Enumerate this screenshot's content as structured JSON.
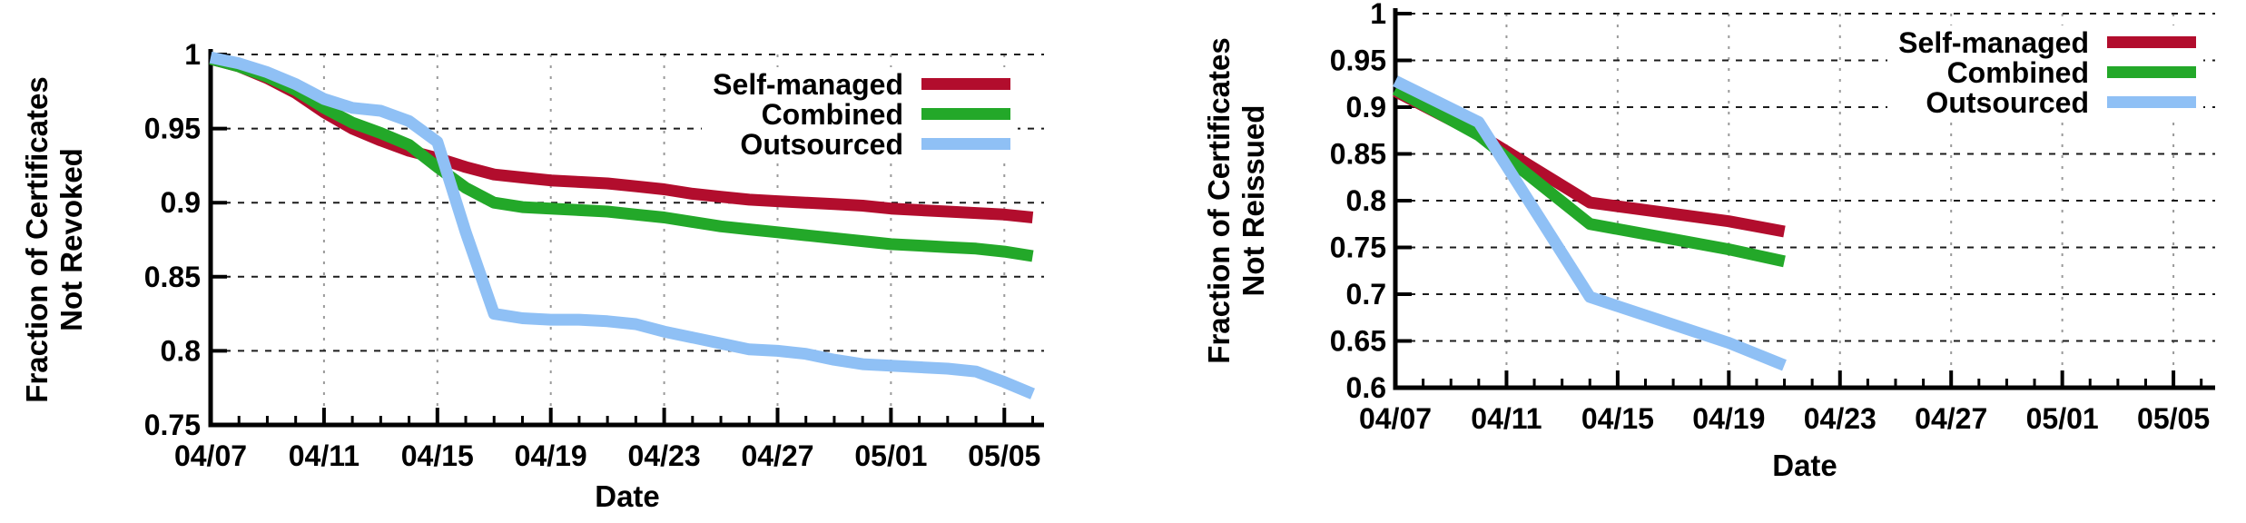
{
  "styles": {
    "background": "#ffffff",
    "text": "#000000",
    "axis": "#000000",
    "h_grid": "#1c1c1c",
    "v_grid": "#9a9a9a",
    "series_colors": {
      "self_managed": "#b20d2d",
      "combined": "#23a829",
      "outsourced": "#8fc0f5"
    }
  },
  "chart_data": [
    {
      "type": "line",
      "title": "",
      "xlabel": "Date",
      "ylabel": "Fraction of Certificates Not Revoked",
      "ylabel_lines": [
        "Fraction of Certificates",
        "Not Revoked"
      ],
      "ylim": [
        0.75,
        1.0
      ],
      "y_tick_values": [
        0.75,
        0.8,
        0.85,
        0.9,
        0.95,
        1.0
      ],
      "y_tick_labels": [
        "0.75",
        "0.8",
        "0.85",
        "0.9",
        "0.95",
        "1"
      ],
      "xlim_days": [
        0,
        29.4
      ],
      "x_tick_days": [
        0,
        4,
        8,
        12,
        16,
        20,
        24,
        28
      ],
      "x_tick_labels": [
        "04/07",
        "04/11",
        "04/15",
        "04/19",
        "04/23",
        "04/27",
        "05/01",
        "05/05"
      ],
      "x_minor_tick_step_days": 1,
      "grid": true,
      "legend_position": "top-right-inside",
      "dates": [
        "04/07",
        "04/08",
        "04/09",
        "04/10",
        "04/11",
        "04/12",
        "04/13",
        "04/14",
        "04/15",
        "04/16",
        "04/17",
        "04/18",
        "04/19",
        "04/20",
        "04/21",
        "04/22",
        "04/23",
        "04/24",
        "04/25",
        "04/26",
        "04/27",
        "04/28",
        "04/29",
        "04/30",
        "05/01",
        "05/02",
        "05/03",
        "05/04",
        "05/05",
        "05/06"
      ],
      "series": [
        {
          "name": "Self-managed",
          "color": "#b20d2d",
          "points": [
            [
              0,
              0.997
            ],
            [
              1,
              0.992
            ],
            [
              2,
              0.984
            ],
            [
              3,
              0.974
            ],
            [
              4,
              0.961
            ],
            [
              5,
              0.95
            ],
            [
              6,
              0.942
            ],
            [
              7,
              0.935
            ],
            [
              8,
              0.93
            ],
            [
              9,
              0.924
            ],
            [
              10,
              0.919
            ],
            [
              11,
              0.917
            ],
            [
              12,
              0.915
            ],
            [
              13,
              0.914
            ],
            [
              14,
              0.913
            ],
            [
              15,
              0.911
            ],
            [
              16,
              0.909
            ],
            [
              17,
              0.906
            ],
            [
              18,
              0.904
            ],
            [
              19,
              0.902
            ],
            [
              20,
              0.901
            ],
            [
              21,
              0.9
            ],
            [
              22,
              0.899
            ],
            [
              23,
              0.898
            ],
            [
              24,
              0.896
            ],
            [
              25,
              0.895
            ],
            [
              26,
              0.894
            ],
            [
              27,
              0.893
            ],
            [
              28,
              0.892
            ],
            [
              29,
              0.89
            ]
          ]
        },
        {
          "name": "Combined",
          "color": "#23a829",
          "points": [
            [
              0,
              0.997
            ],
            [
              1,
              0.992
            ],
            [
              2,
              0.985
            ],
            [
              3,
              0.976
            ],
            [
              4,
              0.964
            ],
            [
              5,
              0.954
            ],
            [
              6,
              0.947
            ],
            [
              7,
              0.939
            ],
            [
              8,
              0.924
            ],
            [
              9,
              0.91
            ],
            [
              10,
              0.9
            ],
            [
              11,
              0.897
            ],
            [
              12,
              0.896
            ],
            [
              13,
              0.895
            ],
            [
              14,
              0.894
            ],
            [
              15,
              0.892
            ],
            [
              16,
              0.89
            ],
            [
              17,
              0.887
            ],
            [
              18,
              0.884
            ],
            [
              19,
              0.882
            ],
            [
              20,
              0.88
            ],
            [
              21,
              0.878
            ],
            [
              22,
              0.876
            ],
            [
              23,
              0.874
            ],
            [
              24,
              0.872
            ],
            [
              25,
              0.871
            ],
            [
              26,
              0.87
            ],
            [
              27,
              0.869
            ],
            [
              28,
              0.867
            ],
            [
              29,
              0.864
            ]
          ]
        },
        {
          "name": "Outsourced",
          "color": "#8fc0f5",
          "points": [
            [
              0,
              0.998
            ],
            [
              1,
              0.994
            ],
            [
              2,
              0.988
            ],
            [
              3,
              0.98
            ],
            [
              4,
              0.97
            ],
            [
              5,
              0.964
            ],
            [
              6,
              0.962
            ],
            [
              7,
              0.955
            ],
            [
              8,
              0.941
            ],
            [
              9,
              0.88
            ],
            [
              10,
              0.825
            ],
            [
              11,
              0.822
            ],
            [
              12,
              0.821
            ],
            [
              13,
              0.821
            ],
            [
              14,
              0.82
            ],
            [
              15,
              0.818
            ],
            [
              16,
              0.813
            ],
            [
              17,
              0.809
            ],
            [
              18,
              0.805
            ],
            [
              19,
              0.801
            ],
            [
              20,
              0.8
            ],
            [
              21,
              0.798
            ],
            [
              22,
              0.794
            ],
            [
              23,
              0.791
            ],
            [
              24,
              0.79
            ],
            [
              25,
              0.789
            ],
            [
              26,
              0.788
            ],
            [
              27,
              0.786
            ],
            [
              28,
              0.779
            ],
            [
              29,
              0.771
            ]
          ]
        }
      ]
    },
    {
      "type": "line",
      "title": "",
      "xlabel": "Date",
      "ylabel": "Fraction of Certificates Not Reissued",
      "ylabel_lines": [
        "Fraction of Certificates",
        "Not Reissued"
      ],
      "ylim": [
        0.6,
        1.0
      ],
      "y_tick_values": [
        0.6,
        0.65,
        0.7,
        0.75,
        0.8,
        0.85,
        0.9,
        0.95,
        1.0
      ],
      "y_tick_labels": [
        "0.6",
        "0.65",
        "0.7",
        "0.75",
        "0.8",
        "0.85",
        "0.9",
        "0.95",
        "1"
      ],
      "xlim_days": [
        0,
        29.5
      ],
      "x_tick_days": [
        0,
        4,
        8,
        12,
        16,
        20,
        24,
        28
      ],
      "x_tick_labels": [
        "04/07",
        "04/11",
        "04/15",
        "04/19",
        "04/23",
        "04/27",
        "05/01",
        "05/05"
      ],
      "x_minor_tick_step_days": 1,
      "grid": true,
      "legend_position": "top-right-inside",
      "dates": [
        "04/07",
        "04/10",
        "04/14",
        "04/19",
        "04/21"
      ],
      "series": [
        {
          "name": "Self-managed",
          "color": "#b20d2d",
          "point_dates": [
            "04/07",
            "04/10",
            "04/14",
            "04/19",
            "04/21"
          ],
          "points": [
            [
              0,
              0.917
            ],
            [
              3,
              0.871
            ],
            [
              7,
              0.798
            ],
            [
              12,
              0.778
            ],
            [
              14,
              0.767
            ]
          ]
        },
        {
          "name": "Combined",
          "color": "#23a829",
          "point_dates": [
            "04/07",
            "04/10",
            "04/14",
            "04/19",
            "04/21"
          ],
          "points": [
            [
              0,
              0.919
            ],
            [
              3,
              0.87
            ],
            [
              7,
              0.775
            ],
            [
              12,
              0.748
            ],
            [
              14,
              0.735
            ]
          ]
        },
        {
          "name": "Outsourced",
          "color": "#8fc0f5",
          "point_dates": [
            "04/07",
            "04/10",
            "04/14",
            "04/19",
            "04/21"
          ],
          "points": [
            [
              0,
              0.928
            ],
            [
              3,
              0.884
            ],
            [
              7,
              0.697
            ],
            [
              12,
              0.648
            ],
            [
              14,
              0.624
            ]
          ]
        }
      ]
    }
  ]
}
